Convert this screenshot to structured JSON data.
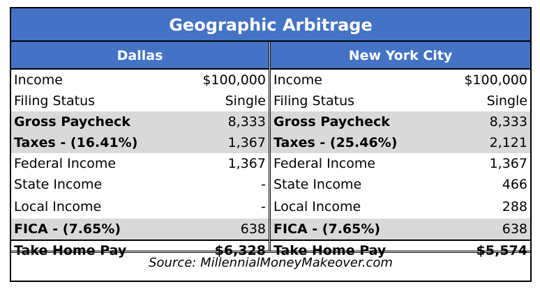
{
  "title": "Geographic Arbitrage",
  "columns": [
    {
      "city": "Dallas",
      "rows": [
        {
          "label": "Income",
          "value": "$100,000"
        },
        {
          "label": "Filing Status",
          "value": "Single"
        },
        {
          "label": "Gross Paycheck",
          "value": "8,333"
        },
        {
          "label": "Taxes - (16.41%)",
          "value": "1,367"
        },
        {
          "label": "Federal Income",
          "value": "1,367"
        },
        {
          "label": "State Income",
          "value": "-"
        },
        {
          "label": "Local Income",
          "value": "-"
        },
        {
          "label": "FICA - (7.65%)",
          "value": "638"
        },
        {
          "label": "Take Home Pay",
          "value": "$6,328"
        }
      ]
    },
    {
      "city": "New York City",
      "rows": [
        {
          "label": "Income",
          "value": "$100,000"
        },
        {
          "label": "Filing Status",
          "value": "Single"
        },
        {
          "label": "Gross Paycheck",
          "value": "8,333"
        },
        {
          "label": "Taxes - (25.46%)",
          "value": "2,121"
        },
        {
          "label": "Federal Income",
          "value": "1,367"
        },
        {
          "label": "State Income",
          "value": "466"
        },
        {
          "label": "Local Income",
          "value": "288"
        },
        {
          "label": "FICA - (7.65%)",
          "value": "638"
        },
        {
          "label": "Take Home Pay",
          "value": "$5,574"
        }
      ]
    }
  ],
  "source": "Source: MillennialMoneyMakeover.com",
  "colors": {
    "header_bg": "#4472c4",
    "shade_bg": "#d9d9d9"
  }
}
